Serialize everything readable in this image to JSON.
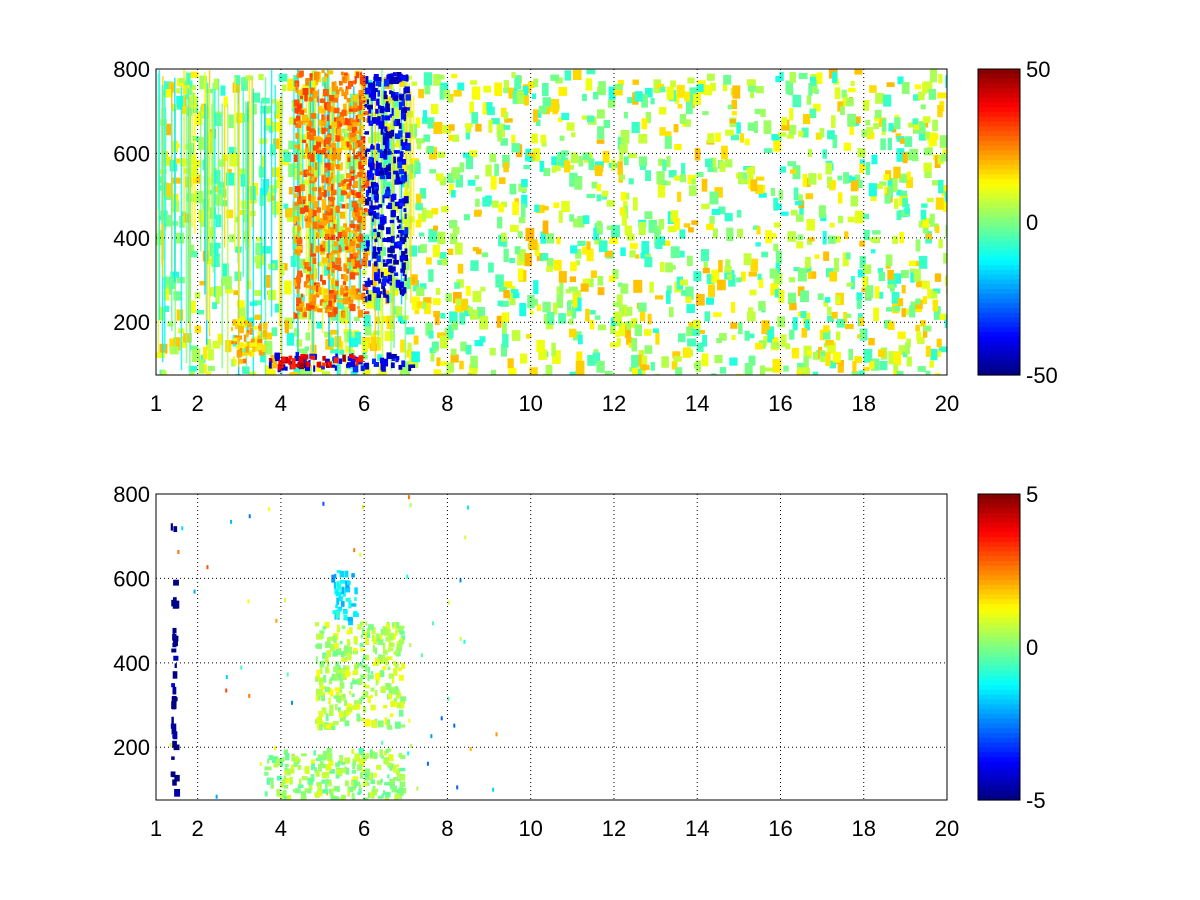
{
  "chart_data": [
    {
      "type": "heatmap",
      "title": "",
      "xlabel": "",
      "ylabel": "",
      "xlim": [
        1,
        20
      ],
      "ylim": [
        75,
        800
      ],
      "grid": true,
      "colormap": "jet",
      "x_ticks": [
        1,
        2,
        4,
        6,
        8,
        10,
        12,
        14,
        16,
        18,
        20
      ],
      "x_tick_labels": [
        "1",
        "2",
        "4",
        "6",
        "8",
        "10",
        "12",
        "14",
        "16",
        "18",
        "20"
      ],
      "y_ticks": [
        200,
        400,
        600,
        800
      ],
      "y_tick_labels": [
        "200",
        "400",
        "600",
        "800"
      ],
      "colorbar": {
        "range": [
          -50,
          50
        ],
        "ticks": [
          50,
          0,
          -50
        ],
        "tick_labels": [
          "50",
          "0",
          "-50"
        ]
      },
      "features": [
        {
          "desc": "dense band near y~110",
          "x": [
            3.7,
            7.1
          ],
          "y": [
            95,
            130
          ],
          "value": -40
        },
        {
          "desc": "dense band near y~110 (warm)",
          "x": [
            3.5,
            5.9
          ],
          "y": [
            100,
            125
          ],
          "value": 40
        },
        {
          "desc": "lower arc",
          "x": [
            2.8,
            3.6
          ],
          "y": [
            110,
            210
          ],
          "value": 20
        },
        {
          "desc": "upper arc (warm)",
          "x": [
            4.3,
            6.0
          ],
          "y": [
            220,
            800
          ],
          "value": 25
        },
        {
          "desc": "upper arc (cool)",
          "x": [
            6.0,
            7.0
          ],
          "y": [
            260,
            800
          ],
          "value": -40
        }
      ]
    },
    {
      "type": "heatmap",
      "title": "",
      "xlabel": "",
      "ylabel": "",
      "xlim": [
        1,
        20
      ],
      "ylim": [
        75,
        800
      ],
      "grid": true,
      "colormap": "jet",
      "x_ticks": [
        1,
        2,
        4,
        6,
        8,
        10,
        12,
        14,
        16,
        18,
        20
      ],
      "x_tick_labels": [
        "1",
        "2",
        "4",
        "6",
        "8",
        "10",
        "12",
        "14",
        "16",
        "18",
        "20"
      ],
      "y_ticks": [
        200,
        400,
        600,
        800
      ],
      "y_tick_labels": [
        "200",
        "400",
        "600",
        "800"
      ],
      "colorbar": {
        "range": [
          -5,
          5
        ],
        "ticks": [
          5,
          0,
          -5
        ],
        "tick_labels": [
          "5",
          "0",
          "-5"
        ]
      },
      "features": [
        {
          "desc": "bottom band",
          "x": [
            3.6,
            6.9
          ],
          "y": [
            80,
            200
          ],
          "value": 0.3
        },
        {
          "desc": "arc region",
          "x": [
            4.8,
            6.9
          ],
          "y": [
            250,
            500
          ],
          "value": 0.5
        },
        {
          "desc": "cool patch",
          "x": [
            5.2,
            5.8
          ],
          "y": [
            500,
            620
          ],
          "value": -1.5
        },
        {
          "desc": "vertical streak",
          "x": [
            1.35,
            1.45
          ],
          "y": [
            100,
            750
          ],
          "value": -5
        }
      ]
    }
  ]
}
